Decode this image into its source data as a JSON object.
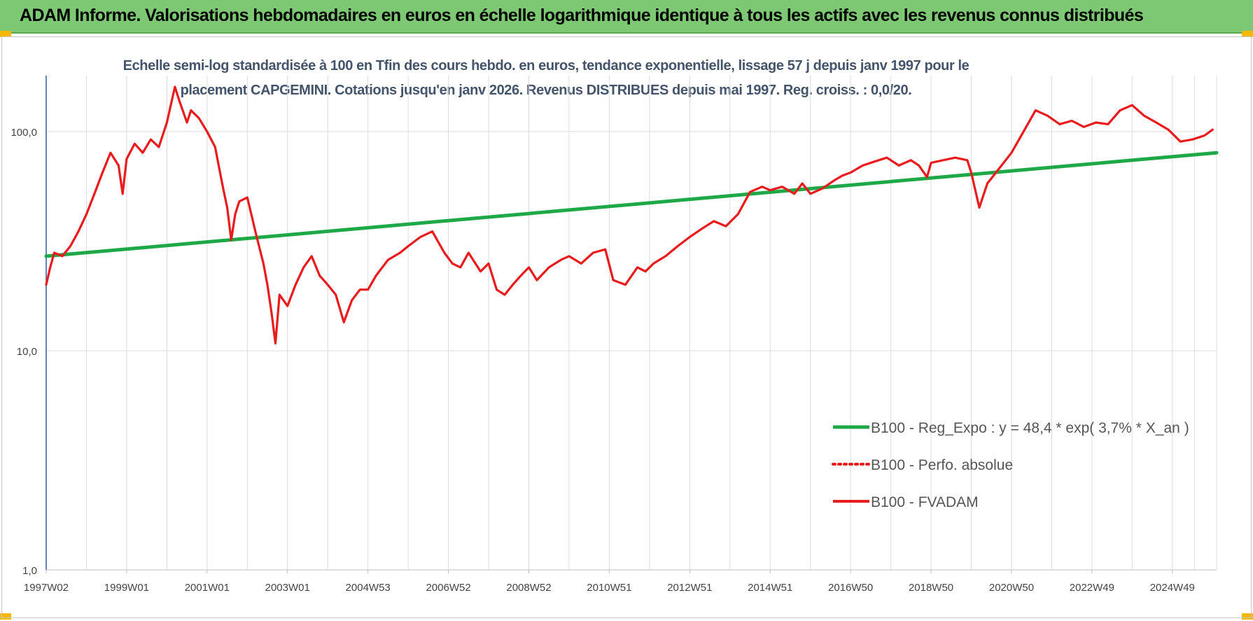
{
  "banner": {
    "title": "ADAM Informe. Valorisations hebdomadaires en euros en échelle logarithmique identique à tous les actifs avec les revenus connus distribués"
  },
  "chart_data": {
    "type": "line",
    "title": "Echelle semi-log standardisée à 100 en Tfin des cours hebdo. en euros, tendance exponentielle, lissage 57 j depuis janv 1997 pour le placement CAPGEMINI. Cotations jusqu'en janv 2026. Revenus DISTRIBUES depuis mai 1997. Reg. croiss. : 0,0/20.",
    "y_scale": "log",
    "ylim": [
      1,
      180
    ],
    "y_ticks": [
      {
        "value": 1,
        "label": "1,0"
      },
      {
        "value": 10,
        "label": "10,0"
      },
      {
        "value": 100,
        "label": "100,0"
      }
    ],
    "xlim": [
      1997.0,
      2026.1
    ],
    "x_ticks": [
      {
        "value": 1997.0,
        "label": "1997W02"
      },
      {
        "value": 1999.0,
        "label": "1999W01"
      },
      {
        "value": 2001.0,
        "label": "2001W01"
      },
      {
        "value": 2003.0,
        "label": "2003W01"
      },
      {
        "value": 2005.0,
        "label": "2004W53"
      },
      {
        "value": 2007.0,
        "label": "2006W52"
      },
      {
        "value": 2009.0,
        "label": "2008W52"
      },
      {
        "value": 2011.0,
        "label": "2010W51"
      },
      {
        "value": 2013.0,
        "label": "2012W51"
      },
      {
        "value": 2015.0,
        "label": "2014W51"
      },
      {
        "value": 2017.0,
        "label": "2016W50"
      },
      {
        "value": 2019.0,
        "label": "2018W50"
      },
      {
        "value": 2021.0,
        "label": "2020W50"
      },
      {
        "value": 2023.0,
        "label": "2022W49"
      },
      {
        "value": 2025.0,
        "label": "2024W49"
      }
    ],
    "grid": "vertical and horizontal",
    "legend_position": "lower-right",
    "series": [
      {
        "name": "B100 - Reg_Expo : y = 48,4 * exp( 3,7% *  X_an )",
        "color": "#1fa847",
        "style": "solid",
        "x": [
          1997.0,
          2026.1
        ],
        "y": [
          27.0,
          80.0
        ]
      },
      {
        "name": "B100 - Perfo. absolue",
        "color": "#e81c1c",
        "style": "dotted",
        "x": [],
        "y": []
      },
      {
        "name": "B100 - FVADAM",
        "color": "#e81c1c",
        "style": "solid",
        "x": [
          1997.0,
          1997.1,
          1997.2,
          1997.4,
          1997.6,
          1997.8,
          1998.0,
          1998.2,
          1998.4,
          1998.6,
          1998.8,
          1998.9,
          1999.0,
          1999.2,
          1999.4,
          1999.6,
          1999.8,
          2000.0,
          2000.2,
          2000.3,
          2000.5,
          2000.6,
          2000.8,
          2001.0,
          2001.2,
          2001.4,
          2001.5,
          2001.6,
          2001.7,
          2001.8,
          2002.0,
          2002.1,
          2002.2,
          2002.4,
          2002.5,
          2002.6,
          2002.7,
          2002.8,
          2003.0,
          2003.2,
          2003.4,
          2003.6,
          2003.8,
          2004.0,
          2004.2,
          2004.4,
          2004.6,
          2004.8,
          2005.0,
          2005.2,
          2005.5,
          2005.8,
          2006.0,
          2006.3,
          2006.6,
          2006.9,
          2007.1,
          2007.3,
          2007.5,
          2007.8,
          2008.0,
          2008.2,
          2008.4,
          2008.6,
          2008.8,
          2009.0,
          2009.2,
          2009.5,
          2009.8,
          2010.0,
          2010.3,
          2010.6,
          2010.9,
          2011.1,
          2011.4,
          2011.7,
          2011.9,
          2012.1,
          2012.4,
          2012.7,
          2013.0,
          2013.3,
          2013.6,
          2013.9,
          2014.2,
          2014.5,
          2014.8,
          2015.0,
          2015.3,
          2015.6,
          2015.8,
          2016.0,
          2016.3,
          2016.6,
          2016.8,
          2017.0,
          2017.3,
          2017.6,
          2017.9,
          2018.2,
          2018.5,
          2018.7,
          2018.9,
          2019.0,
          2019.3,
          2019.6,
          2019.9,
          2020.0,
          2020.2,
          2020.4,
          2020.7,
          2021.0,
          2021.3,
          2021.6,
          2021.9,
          2022.2,
          2022.5,
          2022.8,
          2023.1,
          2023.4,
          2023.7,
          2024.0,
          2024.3,
          2024.6,
          2024.9,
          2025.2,
          2025.5,
          2025.8,
          2026.0
        ],
        "y": [
          20.0,
          24.0,
          28.0,
          27.0,
          30.0,
          35.0,
          42.0,
          52.0,
          65.0,
          80.0,
          70.0,
          52.0,
          75.0,
          88.0,
          80.0,
          92.0,
          85.0,
          110.0,
          160.0,
          140.0,
          110.0,
          125.0,
          115.0,
          100.0,
          85.0,
          55.0,
          45.0,
          32.0,
          42.0,
          48.0,
          50.0,
          42.0,
          35.0,
          25.0,
          20.0,
          15.0,
          10.8,
          18.0,
          16.0,
          20.0,
          24.0,
          27.0,
          22.0,
          20.0,
          18.0,
          13.5,
          17.0,
          19.0,
          19.0,
          22.0,
          26.0,
          28.0,
          30.0,
          33.0,
          35.0,
          28.0,
          25.0,
          24.0,
          28.0,
          23.0,
          25.0,
          19.0,
          18.0,
          20.0,
          22.0,
          24.0,
          21.0,
          24.0,
          26.0,
          27.0,
          25.0,
          28.0,
          29.0,
          21.0,
          20.0,
          24.0,
          23.0,
          25.0,
          27.0,
          30.0,
          33.0,
          36.0,
          39.0,
          37.0,
          42.0,
          53.0,
          56.0,
          54.0,
          56.0,
          52.0,
          58.0,
          52.0,
          55.0,
          60.0,
          63.0,
          65.0,
          70.0,
          73.0,
          76.0,
          70.0,
          74.0,
          70.0,
          62.0,
          72.0,
          74.0,
          76.0,
          74.0,
          65.0,
          45.0,
          58.0,
          68.0,
          80.0,
          100.0,
          125.0,
          118.0,
          108.0,
          112.0,
          105.0,
          110.0,
          108.0,
          125.0,
          132.0,
          118.0,
          110.0,
          102.0,
          90.0,
          92.0,
          96.0,
          102.0
        ]
      }
    ]
  }
}
